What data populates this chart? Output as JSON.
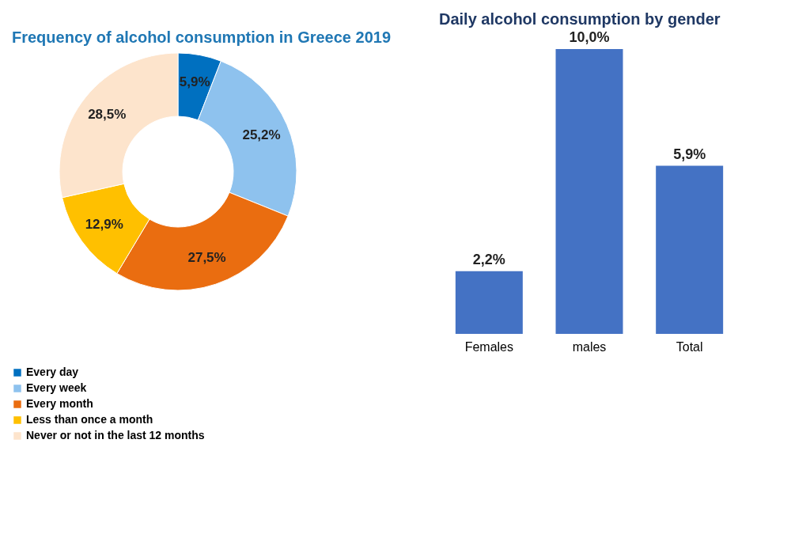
{
  "chart_data": [
    {
      "type": "donut",
      "title": "Frequency of alcohol consumption in Greece 2019",
      "categories": [
        "Every day",
        "Every week",
        "Every month",
        "Less than once a month",
        "Never or not in the last 12 months"
      ],
      "values": [
        5.9,
        25.2,
        27.5,
        12.9,
        28.5
      ],
      "value_labels": [
        "5,9%",
        "25,2%",
        "27,5%",
        "12,9%",
        "28,5%"
      ],
      "colors": [
        "#0070c0",
        "#8ec2ee",
        "#ea6d10",
        "#ffc000",
        "#fde4cc"
      ],
      "legend": "bottom left"
    },
    {
      "type": "bar",
      "title": "Daily alcohol consumption by gender",
      "categories": [
        "Females",
        "males",
        "Total"
      ],
      "values": [
        2.2,
        10.0,
        5.9
      ],
      "value_labels": [
        "2,2%",
        "10,0%",
        "5,9%"
      ],
      "color": "#4472c4"
    }
  ]
}
